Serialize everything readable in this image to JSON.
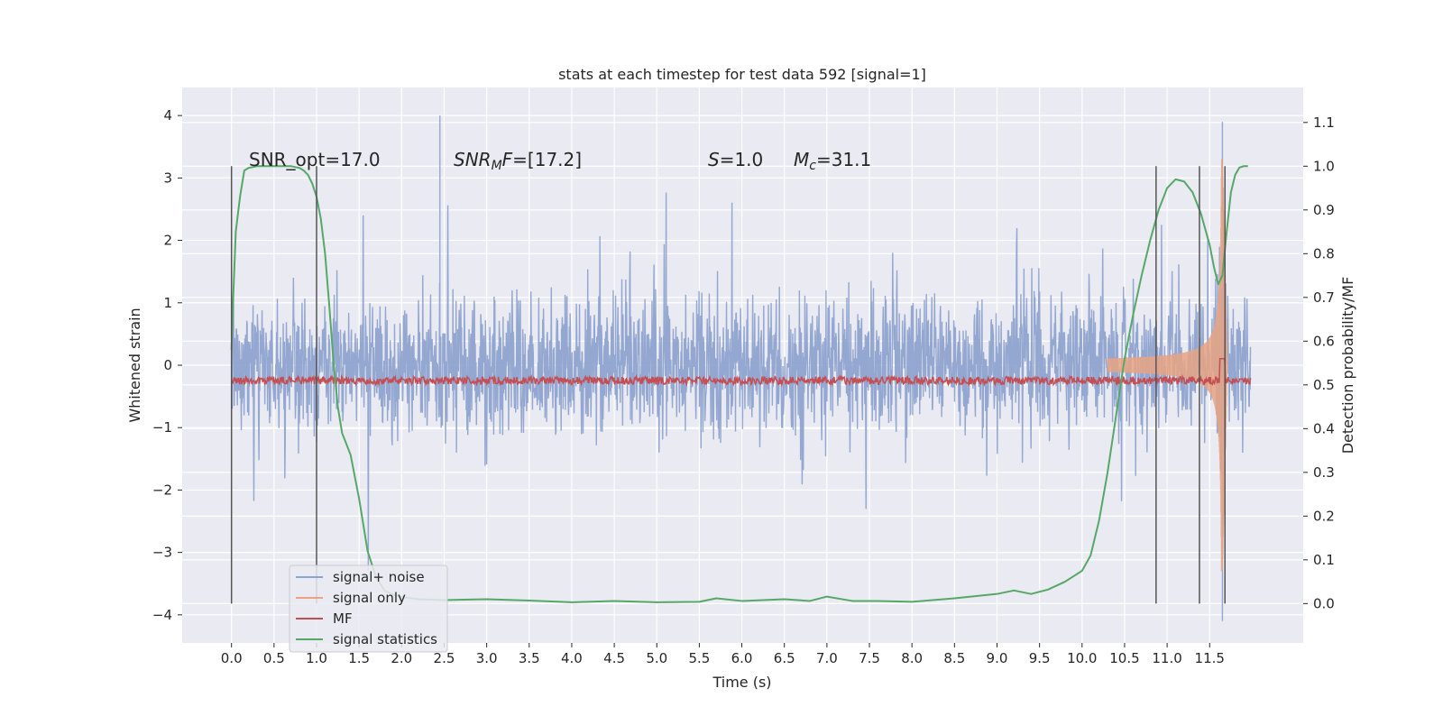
{
  "chart_data": {
    "type": "line",
    "title": "stats at each timestep for test data 592 [signal=1]",
    "xlabel": "Time (s)",
    "ylabel": "Whitened strain",
    "y2label": "Detection probability/MF",
    "xlim": [
      -0.58,
      12.6
    ],
    "ylim": [
      -4.45,
      4.45
    ],
    "y2lim": [
      -0.09,
      1.18
    ],
    "x_ticks": [
      "0.0",
      "0.5",
      "1.0",
      "1.5",
      "2.0",
      "2.5",
      "3.0",
      "3.5",
      "4.0",
      "4.5",
      "5.0",
      "5.5",
      "6.0",
      "6.5",
      "7.0",
      "7.5",
      "8.0",
      "8.5",
      "9.0",
      "9.5",
      "10.0",
      "10.5",
      "11.0",
      "11.5"
    ],
    "y_ticks": [
      "4",
      "3",
      "2",
      "1",
      "0",
      "−1",
      "−2",
      "−3",
      "−4"
    ],
    "y2_ticks": [
      "1.1",
      "1.0",
      "0.9",
      "0.8",
      "0.7",
      "0.6",
      "0.5",
      "0.4",
      "0.3",
      "0.2",
      "0.1",
      "0.0"
    ],
    "grid": true,
    "legend_position": "lower-left",
    "colors": {
      "noise": "#8ea3cf",
      "signal": "#e8a383",
      "mf": "#c44e52",
      "stats": "#55a868",
      "vline": "#555555",
      "plot_bg": "#eaeaf2",
      "grid": "#ffffff"
    },
    "annotations": {
      "snr_opt": "SNR_opt=17.0",
      "snr_mf_italic": "SNR",
      "snr_mf_sub": "M",
      "snr_mf_rest_italic": "F",
      "snr_mf_value": "=[17.2]",
      "s_italic": "S",
      "s_value": "=1.0",
      "mc_italic": "M",
      "mc_sub": "c",
      "mc_value": "=31.1"
    },
    "vertical_lines_x": [
      0.0,
      1.0,
      10.87,
      11.38,
      11.68
    ],
    "series": [
      {
        "name": "signal+ noise",
        "color": "#8ea3cf",
        "axis": "left",
        "x_range": [
          0.0,
          11.98
        ],
        "typical_amplitude": 1.0,
        "peak_x": 2.45,
        "peak_y": 4.0,
        "min_x": 11.65,
        "min_y": -4.1,
        "max_late_x": 11.65,
        "max_late_y": 3.9
      },
      {
        "name": "signal only",
        "color": "#e8a383",
        "axis": "left",
        "x_range": [
          0.0,
          11.72
        ],
        "chirp_peak_x": 11.65,
        "chirp_peak_amplitude": 3.3
      },
      {
        "name": "MF",
        "color": "#c44e52",
        "axis": "right",
        "x_range": [
          0.0,
          11.98
        ],
        "baseline": 0.51,
        "peak_x": 11.65,
        "peak_y": 0.56
      },
      {
        "name": "signal statistics",
        "color": "#55a868",
        "axis": "right",
        "x": [
          0.0,
          0.02,
          0.05,
          0.1,
          0.15,
          0.2,
          0.3,
          0.4,
          0.5,
          0.6,
          0.7,
          0.8,
          0.85,
          0.9,
          0.95,
          1.0,
          1.05,
          1.1,
          1.15,
          1.2,
          1.25,
          1.3,
          1.4,
          1.5,
          1.6,
          1.7,
          1.8,
          1.9,
          2.0,
          2.2,
          2.5,
          3.0,
          3.5,
          4.0,
          4.5,
          5.0,
          5.5,
          5.7,
          6.0,
          6.5,
          6.8,
          7.0,
          7.3,
          7.6,
          8.0,
          8.5,
          9.0,
          9.2,
          9.4,
          9.6,
          9.8,
          10.0,
          10.1,
          10.2,
          10.3,
          10.4,
          10.5,
          10.6,
          10.7,
          10.8,
          10.9,
          11.0,
          11.1,
          11.2,
          11.3,
          11.4,
          11.5,
          11.55,
          11.6,
          11.65,
          11.7,
          11.75,
          11.8,
          11.85,
          11.9,
          11.95
        ],
        "y": [
          0.58,
          0.7,
          0.85,
          0.93,
          0.99,
          0.996,
          1.0,
          1.0,
          1.0,
          1.0,
          1.0,
          0.996,
          0.99,
          0.98,
          0.96,
          0.93,
          0.88,
          0.8,
          0.68,
          0.55,
          0.45,
          0.39,
          0.34,
          0.24,
          0.12,
          0.06,
          0.03,
          0.02,
          0.015,
          0.01,
          0.008,
          0.01,
          0.007,
          0.003,
          0.006,
          0.003,
          0.004,
          0.012,
          0.006,
          0.01,
          0.006,
          0.016,
          0.006,
          0.006,
          0.004,
          0.012,
          0.022,
          0.03,
          0.022,
          0.032,
          0.05,
          0.075,
          0.11,
          0.19,
          0.3,
          0.43,
          0.56,
          0.66,
          0.75,
          0.83,
          0.9,
          0.95,
          0.97,
          0.965,
          0.94,
          0.89,
          0.82,
          0.77,
          0.73,
          0.75,
          0.85,
          0.94,
          0.98,
          0.997,
          1.0,
          1.0
        ]
      }
    ]
  }
}
